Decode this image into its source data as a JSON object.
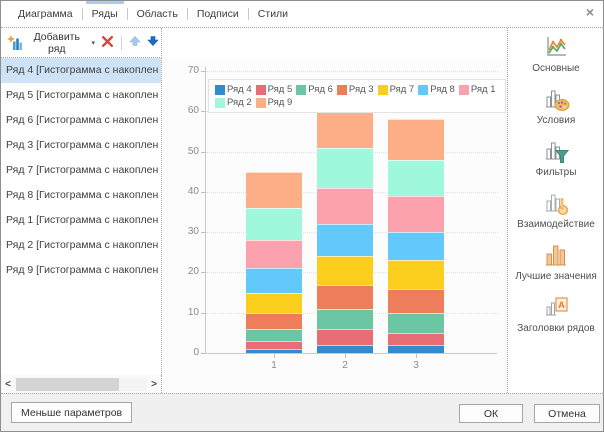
{
  "colors": {
    "selection": "#cfe3f6",
    "tab_accent": "#aecbea",
    "delete_red": "#d2453d",
    "arrow_up": "#a9c9e9",
    "arrow_down": "#1b6ec2"
  },
  "icons": {
    "close": "×",
    "caret": "▾",
    "chevron_left": "<",
    "chevron_right": ">",
    "letter_a": "A"
  },
  "tabs": [
    {
      "id": "diagram",
      "label": "Диаграмма",
      "active": false
    },
    {
      "id": "series",
      "label": "Ряды",
      "active": true
    },
    {
      "id": "area",
      "label": "Область",
      "active": false
    },
    {
      "id": "labels",
      "label": "Подписи",
      "active": false
    },
    {
      "id": "styles",
      "label": "Стили",
      "active": false
    }
  ],
  "toolbar": {
    "add_series_label": "Добавить ряд"
  },
  "series_list": {
    "selected_index": 0,
    "items": [
      "Ряд 4 [Гистограмма с накоплен",
      "Ряд 5 [Гистограмма с накоплен",
      "Ряд 6 [Гистограмма с накоплен",
      "Ряд 3 [Гистограмма с накоплен",
      "Ряд 7 [Гистограмма с накоплен",
      "Ряд 8 [Гистограмма с накоплен",
      "Ряд 1 [Гистограмма с накоплен",
      "Ряд 2 [Гистограмма с накоплен",
      "Ряд 9 [Гистограмма с накоплен"
    ]
  },
  "sidebar": {
    "items": [
      {
        "id": "basic",
        "label": "Основные"
      },
      {
        "id": "conditions",
        "label": "Условия"
      },
      {
        "id": "filters",
        "label": "Фильтры"
      },
      {
        "id": "interaction",
        "label": "Взаимодействие"
      },
      {
        "id": "top-values",
        "label": "Лучшие значения"
      },
      {
        "id": "series-headers",
        "label": "Заголовки рядов"
      }
    ]
  },
  "footer": {
    "less_params_label": "Меньше параметров",
    "ok_label": "ОК",
    "cancel_label": "Отмена"
  },
  "chart_data": {
    "type": "bar",
    "stacked": true,
    "title": "",
    "xlabel": "",
    "ylabel": "",
    "categories": [
      "1",
      "2",
      "3"
    ],
    "series": [
      {
        "name": "Ряд 4",
        "color": "#318bce",
        "values": [
          1,
          2,
          2
        ]
      },
      {
        "name": "Ряд 5",
        "color": "#e96d74",
        "values": [
          2,
          4,
          3
        ]
      },
      {
        "name": "Ряд 6",
        "color": "#6cc5a3",
        "values": [
          3,
          5,
          5
        ]
      },
      {
        "name": "Ряд 3",
        "color": "#ee7d5b",
        "values": [
          4,
          6,
          6
        ]
      },
      {
        "name": "Ряд 7",
        "color": "#fbcd1d",
        "values": [
          5,
          7,
          7
        ]
      },
      {
        "name": "Ряд 8",
        "color": "#63c8fa",
        "values": [
          6,
          8,
          7
        ]
      },
      {
        "name": "Ряд 1",
        "color": "#fba2ae",
        "values": [
          7,
          9,
          9
        ]
      },
      {
        "name": "Ряд 2",
        "color": "#9ff8dc",
        "values": [
          8,
          10,
          9
        ]
      },
      {
        "name": "Ряд 9",
        "color": "#fcae87",
        "values": [
          9,
          10,
          10
        ]
      }
    ],
    "stack_totals": [
      45,
      61,
      58
    ],
    "ylim": [
      0,
      70
    ],
    "ytick_step": 10,
    "grid": true,
    "legend_position": "top-left"
  }
}
